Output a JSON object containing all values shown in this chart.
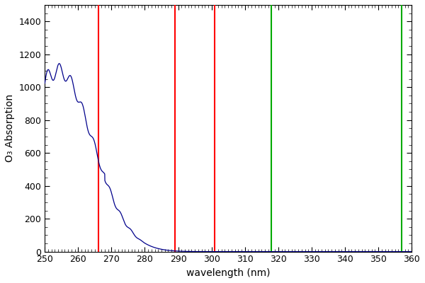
{
  "xlim": [
    250,
    360
  ],
  "ylim": [
    0,
    1500
  ],
  "xlabel": "wavelength (nm)",
  "ylabel": "O₃ Absorption",
  "red_lines": [
    266,
    289,
    301
  ],
  "green_lines": [
    318,
    357
  ],
  "line_color": "#00008B",
  "red_color": "#FF0000",
  "green_color": "#00AA00",
  "bg_color": "#FFFFFF",
  "xticks": [
    250,
    260,
    270,
    280,
    290,
    300,
    310,
    320,
    330,
    340,
    350,
    360
  ],
  "yticks": [
    0,
    200,
    400,
    600,
    800,
    1000,
    1200,
    1400
  ],
  "figsize": [
    6.0,
    4.0
  ],
  "dpi": 100
}
